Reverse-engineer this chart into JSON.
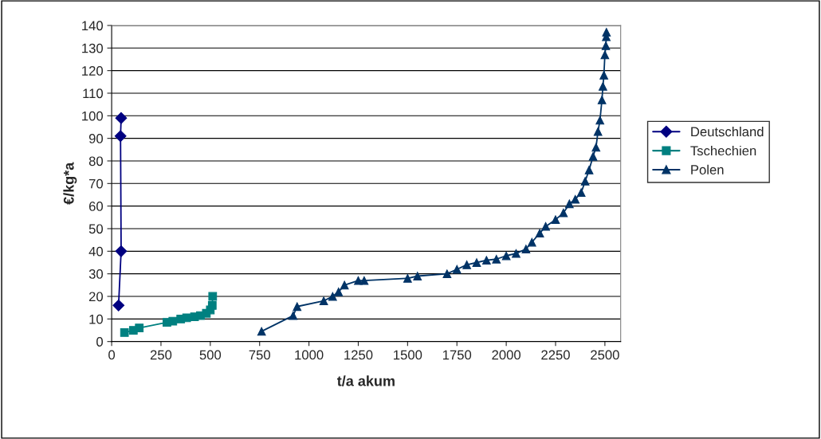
{
  "chart_data": {
    "type": "line",
    "xlabel": "t/a akum",
    "ylabel": "€/kg*a",
    "xlim": [
      0,
      2580
    ],
    "ylim": [
      0,
      140
    ],
    "xticks": [
      0,
      250,
      500,
      750,
      1000,
      1250,
      1500,
      1750,
      2000,
      2250,
      2500
    ],
    "yticks": [
      0,
      10,
      20,
      30,
      40,
      50,
      60,
      70,
      80,
      90,
      100,
      110,
      120,
      130,
      140
    ],
    "grid": "y",
    "legend": "right",
    "series": [
      {
        "name": "Deutschland",
        "color": "#000080",
        "marker": "diamond",
        "x": [
          35,
          48,
          45,
          48
        ],
        "values": [
          16,
          40,
          91,
          99
        ]
      },
      {
        "name": "Tschechien",
        "color": "#008080",
        "marker": "square",
        "x": [
          65,
          110,
          140,
          280,
          310,
          350,
          380,
          420,
          450,
          480,
          500,
          510,
          512
        ],
        "values": [
          4,
          5,
          6,
          8.5,
          9,
          10,
          10.5,
          11,
          11.5,
          12.5,
          14,
          16,
          20
        ]
      },
      {
        "name": "Polen",
        "color": "#003366",
        "marker": "triangle",
        "x": [
          760,
          920,
          940,
          1075,
          1120,
          1150,
          1180,
          1250,
          1280,
          1500,
          1550,
          1700,
          1750,
          1800,
          1850,
          1900,
          1950,
          2000,
          2050,
          2100,
          2130,
          2170,
          2200,
          2250,
          2290,
          2320,
          2350,
          2380,
          2400,
          2420,
          2440,
          2455,
          2465,
          2475,
          2485,
          2490,
          2495,
          2500,
          2505,
          2507,
          2508
        ],
        "values": [
          4.5,
          11.5,
          15.5,
          18,
          20,
          22,
          25,
          27,
          27,
          28,
          29,
          30,
          32,
          34,
          35,
          36,
          36.5,
          38,
          39,
          41,
          44,
          48,
          51,
          54,
          57,
          61,
          63,
          66,
          71,
          76,
          82,
          86,
          93,
          98,
          107,
          113,
          118,
          127,
          131,
          135,
          137
        ]
      }
    ]
  }
}
